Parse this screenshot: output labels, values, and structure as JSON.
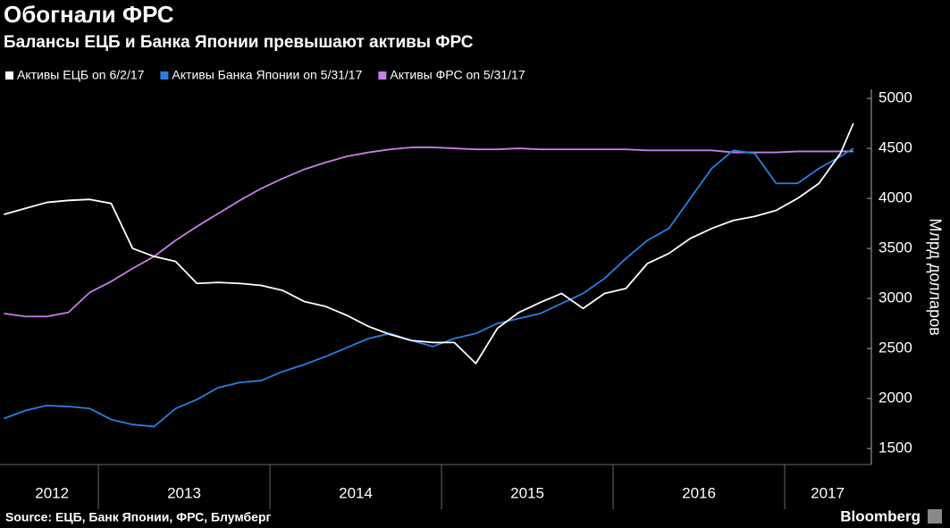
{
  "chart_data": {
    "type": "line",
    "title": "Обогнали ФРС",
    "subtitle": "Балансы ЕЦБ и Банка Японии превышают активы ФРС",
    "y_label": "Млрд долларов",
    "source": "Source: ЕЦБ, Банк Японии, ФРС, Блумберг",
    "brand": "Bloomberg",
    "x": [
      2012.45,
      2012.575,
      2012.7,
      2012.825,
      2012.95,
      2013.075,
      2013.2,
      2013.325,
      2013.45,
      2013.575,
      2013.7,
      2013.825,
      2013.95,
      2014.075,
      2014.2,
      2014.325,
      2014.45,
      2014.575,
      2014.7,
      2014.825,
      2014.95,
      2015.075,
      2015.2,
      2015.325,
      2015.45,
      2015.575,
      2015.7,
      2015.825,
      2015.95,
      2016.075,
      2016.2,
      2016.325,
      2016.45,
      2016.575,
      2016.7,
      2016.825,
      2016.95,
      2017.075,
      2017.2,
      2017.325,
      2017.4
    ],
    "series": [
      {
        "name": "Активы ЕЦБ on 6/2/17",
        "color": "#ffffff",
        "values": [
          3840,
          3900,
          3960,
          3980,
          3990,
          3950,
          3500,
          3420,
          3370,
          3150,
          3160,
          3150,
          3130,
          3080,
          2970,
          2920,
          2830,
          2720,
          2640,
          2580,
          2560,
          2560,
          2350,
          2700,
          2860,
          2960,
          3050,
          2900,
          3050,
          3100,
          3350,
          3450,
          3600,
          3700,
          3780,
          3820,
          3880,
          4000,
          4150,
          4450,
          4750
        ]
      },
      {
        "name": "Активы Банка Японии on 5/31/17",
        "color": "#2b7de0",
        "values": [
          1800,
          1880,
          1930,
          1920,
          1900,
          1790,
          1740,
          1720,
          1900,
          1990,
          2110,
          2160,
          2180,
          2270,
          2340,
          2420,
          2510,
          2600,
          2650,
          2580,
          2520,
          2600,
          2650,
          2750,
          2800,
          2850,
          2950,
          3050,
          3200,
          3400,
          3580,
          3700,
          4000,
          4300,
          4480,
          4450,
          4150,
          4150,
          4300,
          4420,
          4500
        ]
      },
      {
        "name": "Активы ФРС on 5/31/17",
        "color": "#c77ee8",
        "values": [
          2850,
          2820,
          2820,
          2860,
          3060,
          3170,
          3300,
          3420,
          3580,
          3720,
          3850,
          3980,
          4100,
          4200,
          4290,
          4360,
          4420,
          4460,
          4490,
          4510,
          4510,
          4500,
          4490,
          4490,
          4500,
          4490,
          4490,
          4490,
          4490,
          4490,
          4480,
          4480,
          4480,
          4480,
          4460,
          4460,
          4460,
          4470,
          4470,
          4470,
          4470
        ]
      }
    ],
    "xlim": [
      2012.427,
      2017.505
    ],
    "xticks": [
      {
        "value": 2012.73,
        "label": "2012"
      },
      {
        "value": 2013.5,
        "label": "2013"
      },
      {
        "value": 2014.5,
        "label": "2014"
      },
      {
        "value": 2015.5,
        "label": "2015"
      },
      {
        "value": 2016.5,
        "label": "2016"
      },
      {
        "value": 2017.25,
        "label": "2017"
      }
    ],
    "x_separators": [
      2013,
      2014,
      2015,
      2016,
      2017
    ],
    "ylim": [
      1340,
      5090
    ],
    "yticks": [
      1500,
      2000,
      2500,
      3000,
      3500,
      4000,
      4500,
      5000
    ],
    "grid": false
  }
}
